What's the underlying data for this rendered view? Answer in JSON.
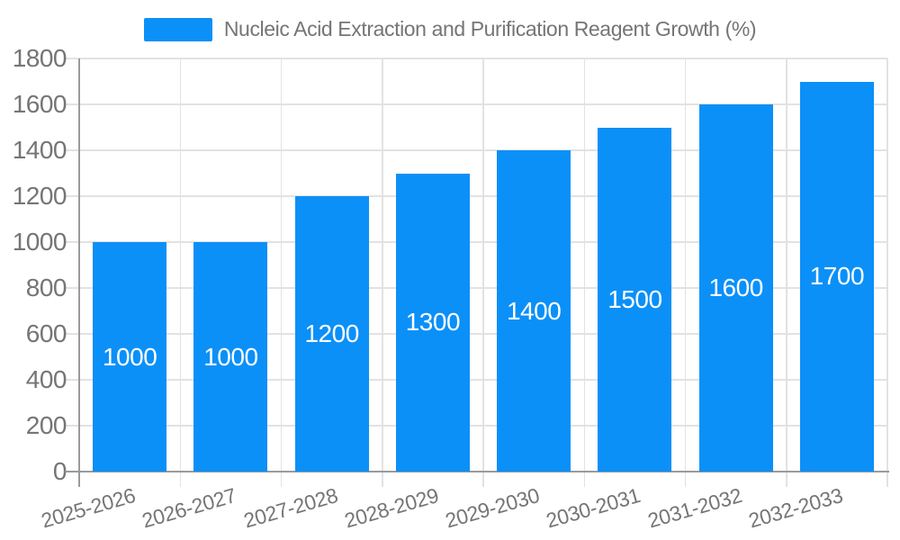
{
  "legend": {
    "label": "Nucleic Acid Extraction and Purification Reagent Growth (%)"
  },
  "chart_data": {
    "type": "bar",
    "title": "Nucleic Acid Extraction and Purification Reagent Growth (%)",
    "categories": [
      "2025-2026",
      "2026-2027",
      "2027-2028",
      "2028-2029",
      "2029-2030",
      "2030-2031",
      "2031-2032",
      "2032-2033"
    ],
    "series": [
      {
        "name": "Nucleic Acid Extraction and Purification Reagent Growth (%)",
        "values": [
          1000,
          1000,
          1200,
          1300,
          1400,
          1500,
          1600,
          1700
        ]
      }
    ],
    "value_labels": [
      "1000",
      "1000",
      "1200",
      "1300",
      "1400",
      "1500",
      "1600",
      "1700"
    ],
    "xlabel": "",
    "ylabel": "",
    "ylim": [
      0,
      1800
    ],
    "ytick_step": 200,
    "yticks": [
      0,
      200,
      400,
      600,
      800,
      1000,
      1200,
      1400,
      1600,
      1800
    ],
    "grid": true,
    "legend_position": "top",
    "colors": {
      "bar": "#0B90F8",
      "grid": "#E2E2E2",
      "axis": "#9A9A9A",
      "label": "#757575",
      "value_label": "#FFFFFF",
      "background": "#FFFFFF"
    }
  }
}
